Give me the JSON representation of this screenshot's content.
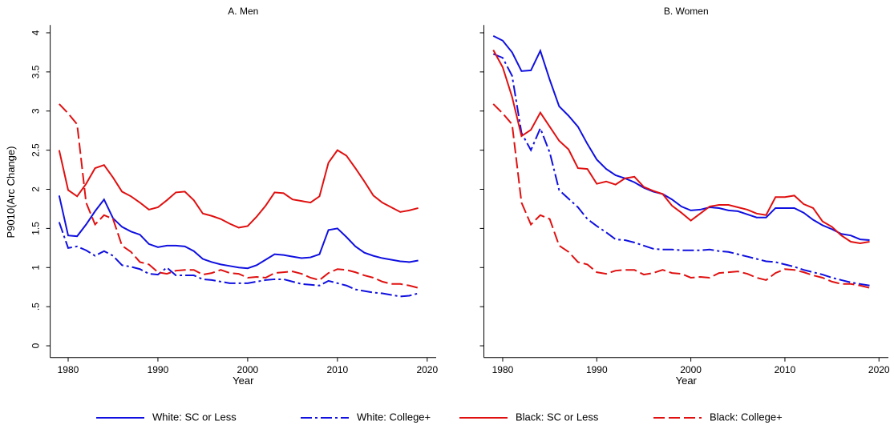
{
  "chart_data": {
    "type": "line",
    "ylabel": "P9010(Arc Change)",
    "xlabel": "Year",
    "x": [
      1979,
      1980,
      1981,
      1982,
      1983,
      1984,
      1985,
      1986,
      1987,
      1988,
      1989,
      1990,
      1991,
      1992,
      1993,
      1994,
      1995,
      1996,
      1997,
      1998,
      1999,
      2000,
      2001,
      2002,
      2003,
      2004,
      2005,
      2006,
      2007,
      2008,
      2009,
      2010,
      2011,
      2012,
      2013,
      2014,
      2015,
      2016,
      2017,
      2018,
      2019
    ],
    "xlim": [
      1978,
      2021
    ],
    "xticks": [
      1980,
      1990,
      2000,
      2010,
      2020
    ],
    "ylim": [
      -0.15,
      4.1
    ],
    "yticks": [
      0,
      {
        "value": 0.5,
        "label": ".5"
      },
      1,
      1.5,
      2,
      2.5,
      3,
      3.5,
      4
    ],
    "legend": [
      {
        "name": "White: SC or Less",
        "color": "#1010e0",
        "dash": "none"
      },
      {
        "name": "White: College+",
        "color": "#1010e0",
        "dash": "14,4,3,4"
      },
      {
        "name": "Black: SC or Less",
        "color": "#e01010",
        "dash": "none"
      },
      {
        "name": "Black: College+",
        "color": "#e01010",
        "dash": "14,5"
      }
    ],
    "panels": [
      {
        "title": "A. Men",
        "series": [
          {
            "values": [
              1.92,
              1.41,
              1.4,
              1.55,
              1.72,
              1.87,
              1.63,
              1.52,
              1.46,
              1.42,
              1.3,
              1.26,
              1.28,
              1.28,
              1.27,
              1.21,
              1.11,
              1.07,
              1.04,
              1.02,
              1.0,
              0.99,
              1.03,
              1.1,
              1.17,
              1.16,
              1.14,
              1.12,
              1.13,
              1.17,
              1.48,
              1.5,
              1.39,
              1.27,
              1.19,
              1.15,
              1.12,
              1.1,
              1.08,
              1.07,
              1.09
            ]
          },
          {
            "values": [
              1.58,
              1.25,
              1.27,
              1.22,
              1.15,
              1.21,
              1.15,
              1.03,
              1.01,
              0.98,
              0.92,
              0.91,
              1.0,
              0.9,
              0.9,
              0.9,
              0.85,
              0.84,
              0.82,
              0.8,
              0.8,
              0.8,
              0.82,
              0.84,
              0.85,
              0.85,
              0.82,
              0.79,
              0.78,
              0.77,
              0.83,
              0.8,
              0.77,
              0.72,
              0.7,
              0.68,
              0.67,
              0.65,
              0.63,
              0.64,
              0.67
            ]
          },
          {
            "values": [
              2.5,
              1.99,
              1.91,
              2.07,
              2.27,
              2.31,
              2.15,
              1.97,
              1.91,
              1.83,
              1.74,
              1.77,
              1.86,
              1.96,
              1.97,
              1.86,
              1.69,
              1.66,
              1.62,
              1.56,
              1.51,
              1.53,
              1.65,
              1.79,
              1.96,
              1.95,
              1.87,
              1.85,
              1.83,
              1.91,
              2.34,
              2.5,
              2.43,
              2.27,
              2.1,
              1.92,
              1.83,
              1.77,
              1.71,
              1.73,
              1.76
            ]
          },
          {
            "values": [
              3.09,
              2.97,
              2.83,
              1.83,
              1.55,
              1.67,
              1.62,
              1.28,
              1.2,
              1.07,
              1.04,
              0.94,
              0.92,
              0.96,
              0.97,
              0.97,
              0.91,
              0.93,
              0.97,
              0.93,
              0.92,
              0.87,
              0.88,
              0.87,
              0.93,
              0.94,
              0.95,
              0.92,
              0.87,
              0.84,
              0.93,
              0.98,
              0.97,
              0.94,
              0.9,
              0.87,
              0.82,
              0.79,
              0.79,
              0.77,
              0.74
            ]
          }
        ]
      },
      {
        "title": "B. Women",
        "series": [
          {
            "values": [
              3.96,
              3.9,
              3.75,
              3.51,
              3.52,
              3.77,
              3.4,
              3.06,
              2.94,
              2.8,
              2.58,
              2.38,
              2.26,
              2.18,
              2.14,
              2.09,
              2.02,
              1.97,
              1.94,
              1.87,
              1.78,
              1.73,
              1.74,
              1.77,
              1.76,
              1.73,
              1.72,
              1.68,
              1.64,
              1.64,
              1.76,
              1.76,
              1.76,
              1.7,
              1.61,
              1.54,
              1.49,
              1.43,
              1.41,
              1.36,
              1.35
            ]
          },
          {
            "values": [
              3.73,
              3.68,
              3.45,
              2.72,
              2.5,
              2.78,
              2.47,
              1.99,
              1.88,
              1.77,
              1.62,
              1.53,
              1.45,
              1.36,
              1.35,
              1.32,
              1.28,
              1.24,
              1.23,
              1.23,
              1.22,
              1.22,
              1.22,
              1.23,
              1.21,
              1.2,
              1.17,
              1.14,
              1.11,
              1.08,
              1.07,
              1.04,
              1.01,
              0.97,
              0.94,
              0.91,
              0.87,
              0.84,
              0.81,
              0.79,
              0.77
            ]
          },
          {
            "values": [
              3.78,
              3.56,
              3.18,
              2.68,
              2.76,
              2.98,
              2.8,
              2.62,
              2.51,
              2.27,
              2.26,
              2.07,
              2.1,
              2.06,
              2.14,
              2.16,
              2.03,
              1.98,
              1.94,
              1.79,
              1.7,
              1.6,
              1.69,
              1.78,
              1.8,
              1.8,
              1.77,
              1.74,
              1.69,
              1.67,
              1.9,
              1.9,
              1.92,
              1.81,
              1.76,
              1.59,
              1.52,
              1.41,
              1.33,
              1.31,
              1.33
            ]
          },
          {
            "values": [
              3.09,
              2.97,
              2.83,
              1.83,
              1.55,
              1.67,
              1.62,
              1.28,
              1.2,
              1.07,
              1.04,
              0.94,
              0.92,
              0.96,
              0.97,
              0.97,
              0.91,
              0.93,
              0.97,
              0.93,
              0.92,
              0.87,
              0.88,
              0.87,
              0.93,
              0.94,
              0.95,
              0.92,
              0.87,
              0.84,
              0.93,
              0.98,
              0.97,
              0.94,
              0.9,
              0.87,
              0.82,
              0.79,
              0.79,
              0.77,
              0.74
            ]
          }
        ]
      }
    ]
  }
}
